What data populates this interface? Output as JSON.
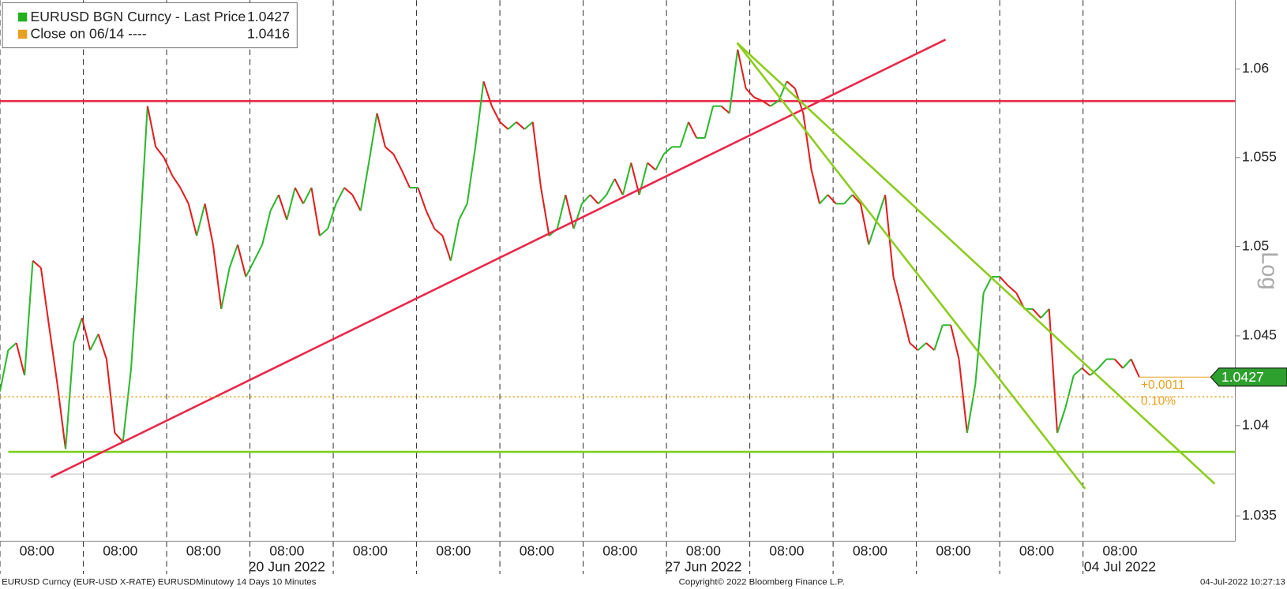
{
  "chart_data": {
    "type": "line",
    "log_scale": true,
    "y_axis_label": "Log",
    "ylim": [
      1.0336,
      1.0639
    ],
    "yticks": [
      1.035,
      1.04,
      1.045,
      1.05,
      1.055,
      1.06
    ],
    "xtick_labels": [
      "08:00",
      "08:00",
      "08:00",
      "08:00",
      "08:00",
      "08:00",
      "08:00",
      "08:00",
      "08:00",
      "08:00",
      "08:00",
      "08:00",
      "08:00",
      "08:00"
    ],
    "xtick_dates": [
      null,
      null,
      null,
      "20 Jun 2022",
      null,
      null,
      null,
      null,
      "27 Jun 2022",
      null,
      null,
      null,
      null,
      "04 Jul 2022"
    ],
    "series": [
      {
        "name": "EURUSD BGN Curncy  - Last Price",
        "color": "#22b022",
        "up_color": "#2fb82f",
        "down_color": "#e02020",
        "last": 1.0427,
        "values": [
          1.0419,
          1.0442,
          1.0446,
          1.0428,
          1.0492,
          1.0488,
          1.0455,
          1.0423,
          1.0387,
          1.0446,
          1.046,
          1.0442,
          1.0451,
          1.0437,
          1.0396,
          1.0391,
          1.0432,
          1.0501,
          1.0579,
          1.0556,
          1.055,
          1.054,
          1.0533,
          1.0524,
          1.0506,
          1.0524,
          1.0501,
          1.0465,
          1.0488,
          1.0501,
          1.0483,
          1.0492,
          1.0501,
          1.052,
          1.0529,
          1.0515,
          1.0533,
          1.0524,
          1.0533,
          1.0506,
          1.051,
          1.0524,
          1.0533,
          1.0529,
          1.052,
          1.0547,
          1.0575,
          1.0556,
          1.0552,
          1.0543,
          1.0533,
          1.0533,
          1.052,
          1.051,
          1.0506,
          1.0492,
          1.0515,
          1.0524,
          1.0556,
          1.0593,
          1.0579,
          1.057,
          1.0566,
          1.057,
          1.0566,
          1.057,
          1.0533,
          1.0506,
          1.051,
          1.0529,
          1.051,
          1.0524,
          1.0529,
          1.0524,
          1.0529,
          1.0538,
          1.0529,
          1.0547,
          1.0529,
          1.0547,
          1.0543,
          1.0552,
          1.0556,
          1.0556,
          1.057,
          1.0561,
          1.0561,
          1.0579,
          1.0579,
          1.0575,
          1.0611,
          1.0589,
          1.0584,
          1.0582,
          1.0579,
          1.0582,
          1.0593,
          1.0589,
          1.0575,
          1.0543,
          1.0524,
          1.0529,
          1.0524,
          1.0524,
          1.0529,
          1.0524,
          1.0501,
          1.0515,
          1.0529,
          1.0483,
          1.0465,
          1.0446,
          1.0442,
          1.0446,
          1.0442,
          1.0456,
          1.0456,
          1.0437,
          1.0396,
          1.0423,
          1.0474,
          1.0483,
          1.0483,
          1.0478,
          1.0474,
          1.0465,
          1.0465,
          1.046,
          1.0465,
          1.0396,
          1.041,
          1.0428,
          1.0432,
          1.0428,
          1.0432,
          1.0437,
          1.0437,
          1.0432,
          1.0437,
          1.0427
        ]
      }
    ],
    "reference_line": {
      "name": "Close on 06/14 ----",
      "value": 1.0416,
      "color": "#e8a020"
    },
    "annotations": [
      "+0.0011",
      "0.10%"
    ],
    "footer": {
      "left": "EURUSD Curncy (EUR-USD X-RATE) EURUSDMinutowy 14 Days 10 Minutes",
      "center": "Copyright© 2022 Bloomberg Finance L.P.",
      "right": "04-Jul-2022 10:27:13"
    }
  }
}
